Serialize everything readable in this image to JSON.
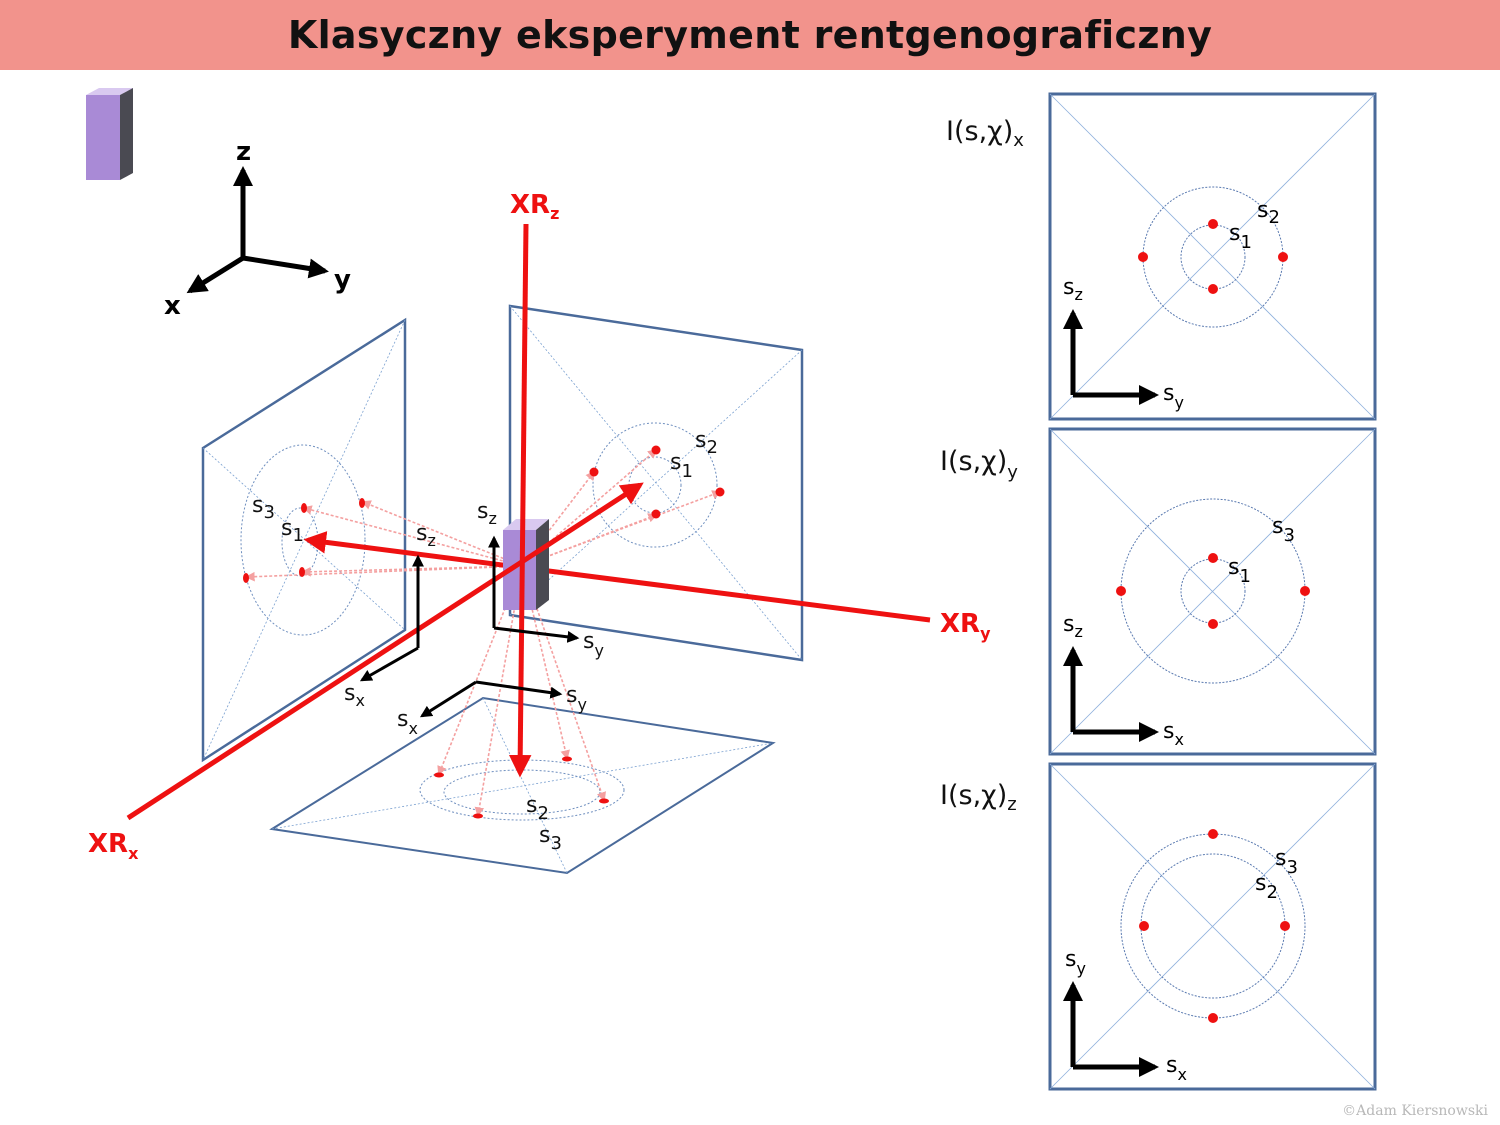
{
  "title": "Klasyczny eksperyment rentgenograficzny",
  "axes": {
    "z": "z",
    "y": "y",
    "x": "x"
  },
  "beams": {
    "z": "XR",
    "z_sub": "z",
    "y": "XR",
    "y_sub": "y",
    "x": "XR",
    "x_sub": "x"
  },
  "s_symbol": "s",
  "labels": {
    "s1": "1",
    "s2": "2",
    "s3": "3",
    "sx": "x",
    "sy": "y",
    "sz": "z"
  },
  "panels": [
    {
      "label": "I(s,χ)",
      "sub": "x",
      "vertical_axis": "z",
      "horizontal_axis": "y",
      "rings": [
        "2",
        "1"
      ]
    },
    {
      "label": "I(s,χ)",
      "sub": "y",
      "vertical_axis": "z",
      "horizontal_axis": "x",
      "rings": [
        "3",
        "1"
      ]
    },
    {
      "label": "I(s,χ)",
      "sub": "z",
      "vertical_axis": "y",
      "horizontal_axis": "x",
      "rings": [
        "3",
        "2"
      ]
    }
  ],
  "colors": {
    "beam": "#ee1111",
    "frame": "#4a6a9a",
    "crystal": "#a98ad6",
    "title_bg": "#f2938c"
  },
  "credit": "©Adam Kiersnowski"
}
